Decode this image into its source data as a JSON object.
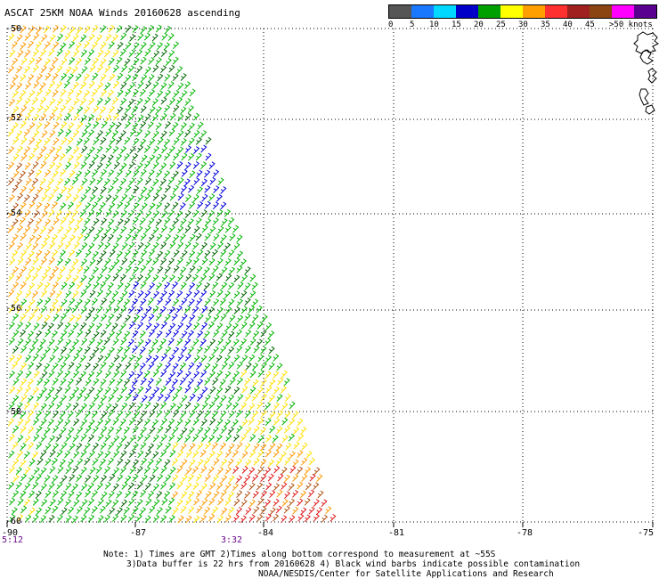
{
  "title": "ASCAT 25KM NOAA Winds 20160628 ascending",
  "legend": {
    "labels": [
      "0",
      "5",
      "10",
      "15",
      "20",
      "25",
      "30",
      "35",
      "40",
      "45",
      ">50 knots"
    ],
    "colors": [
      "#555555",
      "#1a78ff",
      "#00d8ff",
      "#0000c8",
      "#00a000",
      "#ffff00",
      "#ffa000",
      "#ff3030",
      "#a02020",
      "#8b4513",
      "#ff00ff",
      "#5a0090"
    ]
  },
  "latitude_labels": [
    "-50",
    "-52",
    "-54",
    "-56",
    "-58",
    "-60"
  ],
  "longitude_labels": [
    "-90",
    "-87",
    "-84",
    "-81",
    "-78",
    "-75"
  ],
  "time_labels": [
    "5:12",
    "3:32"
  ],
  "notes": [
    "Note: 1) Times are GMT 2)Times along bottom correspond to measurement at ~55S",
    "3)Data buffer is 22 hrs from 20160628 4) Black wind barbs indicate possible contamination",
    "NOAA/NESDIS/Center for Satellite Applications and Research"
  ],
  "wind_palette": {
    "blue": "#0000dd",
    "green": "#00b400",
    "dark_green": "#006400",
    "yellow": "#ffe000",
    "orange": "#ff9a00",
    "red": "#e01818",
    "brown": "#b05010"
  }
}
